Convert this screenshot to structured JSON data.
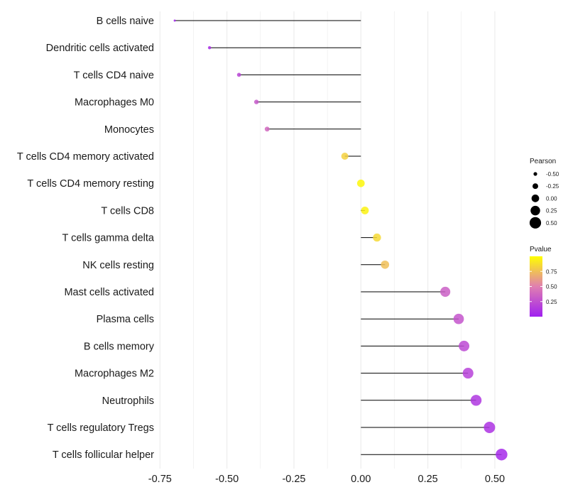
{
  "chart_data": {
    "type": "lollipop",
    "title": "",
    "xlabel": "",
    "ylabel": "",
    "xlim": [
      -0.72,
      0.55
    ],
    "x_ticks": [
      -0.75,
      -0.5,
      -0.25,
      0.0,
      0.25,
      0.5
    ],
    "x_tick_labels": [
      "-0.75",
      "-0.50",
      "-0.25",
      "0.00",
      "0.25",
      "0.50"
    ],
    "grid": true,
    "categories": [
      "B cells naive",
      "Dendritic cells activated",
      "T cells CD4 naive",
      "Macrophages M0",
      "Monocytes",
      "T cells CD4 memory activated",
      "T cells CD4 memory resting",
      "T cells CD8",
      "T cells gamma delta",
      "NK cells resting",
      "Mast cells activated",
      "Plasma cells",
      "B cells memory",
      "Macrophages M2",
      "Neutrophils",
      "T cells regulatory  Tregs",
      "T cells follicular helper"
    ],
    "pearson": [
      -0.695,
      -0.565,
      -0.455,
      -0.39,
      -0.35,
      -0.06,
      0.0,
      0.015,
      0.06,
      0.09,
      0.315,
      0.365,
      0.385,
      0.4,
      0.43,
      0.48,
      0.525
    ],
    "pvalue": [
      0.02,
      0.08,
      0.2,
      0.3,
      0.38,
      0.82,
      0.97,
      0.95,
      0.85,
      0.75,
      0.33,
      0.28,
      0.22,
      0.18,
      0.12,
      0.1,
      0.05
    ],
    "legend_placement": "right",
    "size_legend": {
      "title": "Pearson",
      "values": [
        -0.5,
        -0.25,
        0.0,
        0.25,
        0.5
      ],
      "labels": [
        "-0.50",
        "-0.25",
        "0.00",
        "0.25",
        "0.50"
      ]
    },
    "color_legend": {
      "title": "Pvalue",
      "range": [
        0.0,
        1.0
      ],
      "tick_values": [
        0.75,
        0.5,
        0.25
      ],
      "tick_labels": [
        "0.75",
        "0.50",
        "0.25"
      ],
      "low_color": "#a020f0",
      "high_color": "#ffff00"
    },
    "colors": {
      "stem": "#000000",
      "grid": "#ebebeb",
      "marker_mid": "#e07fb0"
    }
  }
}
